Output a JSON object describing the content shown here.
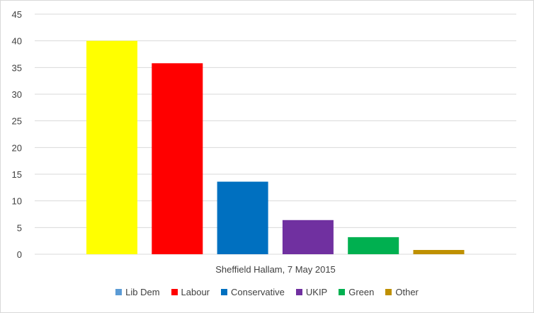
{
  "chart_data": {
    "type": "bar",
    "xlabel": "Sheffield Hallam, 7 May 2015",
    "ylabel": "",
    "ylim": [
      0,
      45
    ],
    "yticks": [
      0,
      5,
      10,
      15,
      20,
      25,
      30,
      35,
      40,
      45
    ],
    "grid": true,
    "legend_position": "bottom",
    "series": [
      {
        "name": "Lib Dem",
        "value": 40.0,
        "color": "#ffff00",
        "legend_color": "#5b9bd5"
      },
      {
        "name": "Labour",
        "value": 35.8,
        "color": "#ff0000",
        "legend_color": "#ff0000"
      },
      {
        "name": "Conservative",
        "value": 13.6,
        "color": "#0070c0",
        "legend_color": "#0070c0"
      },
      {
        "name": "UKIP",
        "value": 6.4,
        "color": "#7030a0",
        "legend_color": "#7030a0"
      },
      {
        "name": "Green",
        "value": 3.2,
        "color": "#00b050",
        "legend_color": "#00b050"
      },
      {
        "name": "Other",
        "value": 0.8,
        "color": "#bf9000",
        "legend_color": "#bf9000"
      }
    ]
  }
}
